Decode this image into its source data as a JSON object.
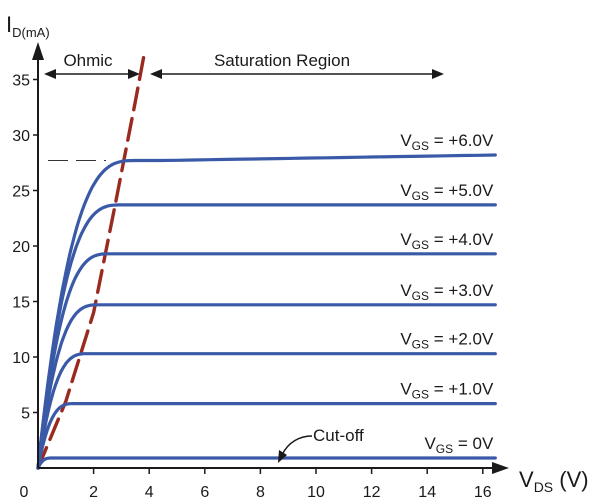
{
  "chart_data": {
    "type": "line",
    "title": "",
    "ylabel": {
      "main": "I",
      "sub": "D(mA)"
    },
    "xlabel": {
      "main": "V",
      "sub": "DS",
      "unit": " (V)"
    },
    "x_ticks": [
      "0",
      "2",
      "4",
      "6",
      "8",
      "10",
      "12",
      "14",
      "16"
    ],
    "y_ticks": [
      "5",
      "10",
      "15",
      "20",
      "25",
      "30",
      "35"
    ],
    "xlim": [
      0,
      16.5
    ],
    "ylim": [
      0,
      37
    ],
    "regions": {
      "ohmic": "Ohmic",
      "saturation": "Saturation Region"
    },
    "cutoff_label": "Cut-off",
    "colors": {
      "curve": "#3a5aa8",
      "boundary": "#9a2a20",
      "axis": "#1a1a1a"
    },
    "boundary": {
      "x": [
        0,
        1.0,
        2.0,
        2.8,
        3.5,
        3.8
      ],
      "y": [
        0,
        6,
        14,
        24,
        33,
        37
      ]
    },
    "reference_y": 27.7,
    "series": [
      {
        "label": {
          "prefix": "V",
          "sub": "GS",
          "value": " = +6.0V"
        },
        "saturation_value": 27.7,
        "end_value": 28.2,
        "knee": 3.5
      },
      {
        "label": {
          "prefix": "V",
          "sub": "GS",
          "value": " = +5.0V"
        },
        "saturation_value": 23.7,
        "end_value": 23.7,
        "knee": 3.0
      },
      {
        "label": {
          "prefix": "V",
          "sub": "GS",
          "value": " = +4.0V"
        },
        "saturation_value": 19.3,
        "end_value": 19.3,
        "knee": 2.6
      },
      {
        "label": {
          "prefix": "V",
          "sub": "GS",
          "value": " = +3.0V"
        },
        "saturation_value": 14.7,
        "end_value": 14.7,
        "knee": 2.2
      },
      {
        "label": {
          "prefix": "V",
          "sub": "GS",
          "value": " = +2.0V"
        },
        "saturation_value": 10.3,
        "end_value": 10.3,
        "knee": 1.8
      },
      {
        "label": {
          "prefix": "V",
          "sub": "GS",
          "value": " = +1.0V"
        },
        "saturation_value": 5.8,
        "end_value": 5.8,
        "knee": 1.3
      },
      {
        "label": {
          "prefix": "V",
          "sub": "GS",
          "value": " = 0V"
        },
        "saturation_value": 0.9,
        "end_value": 0.9,
        "knee": 0.5
      }
    ]
  }
}
